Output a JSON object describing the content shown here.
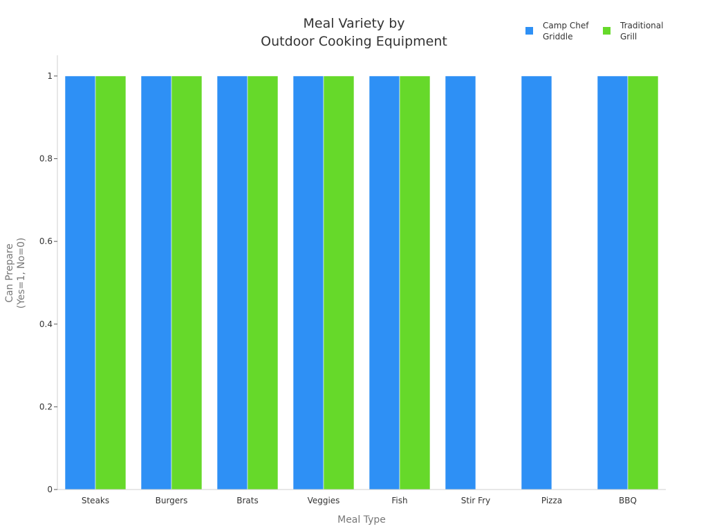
{
  "chart_data": {
    "type": "bar",
    "title": [
      "Meal Variety by",
      "Outdoor Cooking Equipment"
    ],
    "xlabel": "Meal Type",
    "ylabel": [
      "Can Prepare",
      "(Yes=1, No=0)"
    ],
    "categories": [
      "Steaks",
      "Burgers",
      "Brats",
      "Veggies",
      "Fish",
      "Stir Fry",
      "Pizza",
      "BBQ"
    ],
    "series": [
      {
        "name": [
          "Camp Chef",
          "Griddle"
        ],
        "color": "#2e90f5",
        "values": [
          1,
          1,
          1,
          1,
          1,
          1,
          1,
          1
        ]
      },
      {
        "name": [
          "Traditional",
          "Grill"
        ],
        "color": "#66d92a",
        "values": [
          1,
          1,
          1,
          1,
          1,
          0,
          0,
          1
        ]
      }
    ],
    "ylim": [
      0,
      1.05
    ],
    "yticks": [
      0,
      0.2,
      0.4,
      0.6,
      0.8,
      1
    ],
    "ytick_labels": [
      "0",
      "0.2",
      "0.4",
      "0.6",
      "0.8",
      "1"
    ],
    "grid": false,
    "legend_position": "top-right"
  }
}
